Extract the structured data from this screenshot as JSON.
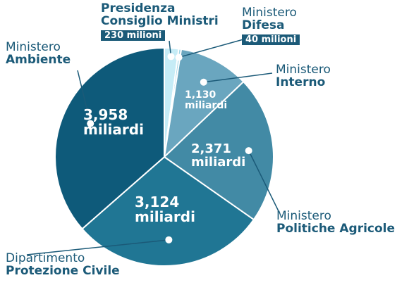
{
  "chart_data": {
    "type": "pie",
    "unit_note": "",
    "slices": [
      {
        "key": "presidenza",
        "name_top": "Presidenza",
        "name_bottom": "Consiglio Ministri",
        "value": 0.23,
        "value_label": "230 milioni",
        "color": "#c6ecf6"
      },
      {
        "key": "difesa",
        "name_top": "Ministero",
        "name_bottom": "Difesa",
        "value": 0.04,
        "value_label": "40 milioni",
        "color": "#9fd5e6"
      },
      {
        "key": "interno",
        "name_top": "Ministero",
        "name_bottom": "Interno",
        "value": 1.13,
        "value_label_1": "1,130",
        "value_label_2": "miliardi",
        "color": "#6aa6bf"
      },
      {
        "key": "agricole",
        "name_top": "Ministero",
        "name_bottom": "Politiche Agricole",
        "value": 2.371,
        "value_label_1": "2,371",
        "value_label_2": "miliardi",
        "color": "#428aa5"
      },
      {
        "key": "protezione",
        "name_top": "Dipartimento",
        "name_bottom": "Protezione Civile",
        "value": 3.124,
        "value_label_1": "3,124",
        "value_label_2": "miliardi",
        "color": "#207694"
      },
      {
        "key": "ambiente",
        "name_top": "Ministero",
        "name_bottom": "Ambiente",
        "value": 3.958,
        "value_label_1": "3,958",
        "value_label_2": "miliardi",
        "color": "#0e5a7a"
      }
    ]
  }
}
